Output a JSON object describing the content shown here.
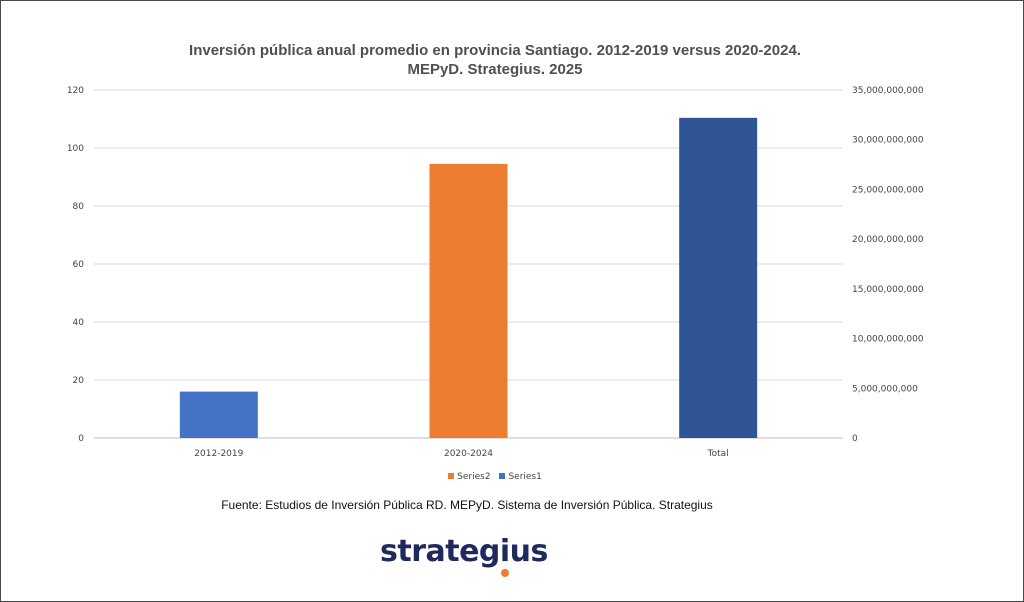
{
  "title": {
    "line1": "Inversión pública anual promedio en provincia Santiago. 2012-2019 versus 2020-2024.",
    "line2": "MEPyD. Strategius. 2025"
  },
  "chart_data": {
    "type": "bar",
    "categories": [
      "2012-2019",
      "2020-2024",
      "Total"
    ],
    "series": [
      {
        "name": "Series1",
        "axis": "left",
        "values": [
          16,
          null,
          null
        ],
        "color": "#4472C4"
      },
      {
        "name": "Series2",
        "axis": "left",
        "values": [
          null,
          94.5,
          null
        ],
        "color": "#ED7D31"
      },
      {
        "name": "",
        "axis": "right",
        "values": [
          null,
          null,
          32200000000
        ],
        "color": "#2F5597"
      }
    ],
    "y_left": {
      "ylim": [
        0,
        120
      ],
      "ticks": [
        "0",
        "20",
        "40",
        "60",
        "80",
        "100",
        "120"
      ]
    },
    "y_right": {
      "ylim": [
        0,
        35000000000
      ],
      "ticks": [
        "0",
        "5,000,000,000",
        "10,000,000,000",
        "15,000,000,000",
        "20,000,000,000",
        "25,000,000,000",
        "30,000,000,000",
        "35,000,000,000"
      ]
    },
    "grid": true,
    "legend": {
      "placement": "bottom",
      "entries": [
        "Series2",
        "Series1"
      ]
    }
  },
  "source": "Fuente: Estudios de Inversión Pública RD. MEPyD. Sistema de Inversión Pública. Strategius",
  "logo": {
    "text": "strategius",
    "color": "#1f2a5c",
    "dot_color": "#ED7D31"
  }
}
